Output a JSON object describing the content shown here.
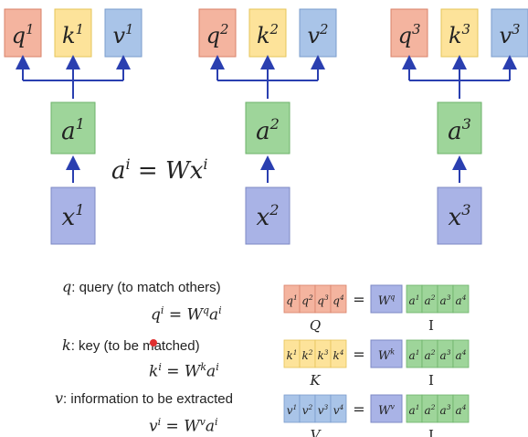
{
  "colors": {
    "q_fill": "#f4b49f",
    "q_stroke": "#d9826a",
    "k_fill": "#fde39a",
    "k_stroke": "#e5c45a",
    "v_fill": "#a9c4e8",
    "v_stroke": "#7a9ccc",
    "a_fill": "#9ed59a",
    "a_stroke": "#6cb26a",
    "x_fill": "#a9b3e6",
    "x_stroke": "#7d88c4",
    "arrow": "#2a3fb0"
  },
  "diagram": {
    "columns": [
      {
        "q": "q",
        "k": "k",
        "v": "v",
        "a": "a",
        "x": "x",
        "sup": "1"
      },
      {
        "q": "q",
        "k": "k",
        "v": "v",
        "a": "a",
        "x": "x",
        "sup": "2"
      },
      {
        "q": "q",
        "k": "k",
        "v": "v",
        "a": "a",
        "x": "x",
        "sup": "3"
      }
    ],
    "equation": {
      "lhs": "a",
      "lhs_sup": "i",
      "eq": "=",
      "rhs_w": "W",
      "rhs_x": "x",
      "rhs_sup": "i"
    }
  },
  "definitions": {
    "query": {
      "symbol": "q",
      "text": ": query (to match others)",
      "formula": {
        "lhs": "q",
        "lhs_sup": "i",
        "w_sup": "q"
      }
    },
    "key": {
      "symbol": "k",
      "text": ": key (to be matched)",
      "formula": {
        "lhs": "k",
        "lhs_sup": "i",
        "w_sup": "k"
      }
    },
    "value": {
      "symbol": "v",
      "text": ": information to be extracted",
      "formula": {
        "lhs": "v",
        "lhs_sup": "i",
        "w_sup": "v"
      }
    }
  },
  "matrices": [
    {
      "left_symbol": "q",
      "left_label": "Q",
      "w_sup": "q",
      "right_label": "I",
      "indices": [
        "1",
        "2",
        "3",
        "4"
      ]
    },
    {
      "left_symbol": "k",
      "left_label": "K",
      "w_sup": "k",
      "right_label": "I",
      "indices": [
        "1",
        "2",
        "3",
        "4"
      ]
    },
    {
      "left_symbol": "v",
      "left_label": "V",
      "w_sup": "v",
      "right_label": "I",
      "indices": [
        "1",
        "2",
        "3",
        "4"
      ]
    }
  ]
}
